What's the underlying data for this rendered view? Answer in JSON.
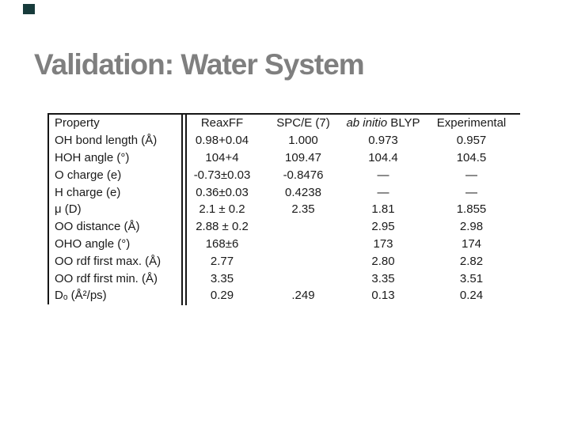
{
  "slide": {
    "title": "Validation: Water System",
    "title_color": "#7f7f7f",
    "accent_color": "#173b3b",
    "background_color": "#ffffff"
  },
  "table": {
    "header": {
      "property": "Property",
      "reaxff": "ReaxFF",
      "spce": "SPC/E (7)",
      "abinitio_italic": "ab initio",
      "abinitio_roman": " BLYP",
      "experimental": "Experimental"
    },
    "rows": [
      {
        "label": "OH bond length (Å)",
        "reaxff": "0.98+0.04",
        "spce": "1.000",
        "blyp": "0.973",
        "exp": "0.957"
      },
      {
        "label": "HOH angle (°)",
        "reaxff": "104+4",
        "spce": "109.47",
        "blyp": "104.4",
        "exp": "104.5"
      },
      {
        "label": "O charge (e)",
        "reaxff": "-0.73±0.03",
        "spce": "-0.8476",
        "blyp": "—",
        "exp": "—"
      },
      {
        "label": "H charge (e)",
        "reaxff": "0.36±0.03",
        "spce": "0.4238",
        "blyp": "—",
        "exp": "—"
      },
      {
        "label": "μ (D)",
        "reaxff": "2.1 ± 0.2",
        "spce": "2.35",
        "blyp": "1.81",
        "exp": "1.855"
      },
      {
        "label": "OO distance (Å)",
        "reaxff": "2.88 ± 0.2",
        "spce": "",
        "blyp": "2.95",
        "exp": "2.98"
      },
      {
        "label": "OHO angle (°)",
        "reaxff": "168±6",
        "spce": "",
        "blyp": "173",
        "exp": "174"
      },
      {
        "label": "OO rdf first max. (Å)",
        "reaxff": "2.77",
        "spce": "",
        "blyp": "2.80",
        "exp": "2.82"
      },
      {
        "label": "OO rdf first min. (Å)",
        "reaxff": "3.35",
        "spce": "",
        "blyp": "3.35",
        "exp": "3.51"
      },
      {
        "label": "Dₒ (Å²/ps)",
        "reaxff": "0.29",
        "spce": ".249",
        "blyp": "0.13",
        "exp": "0.24"
      }
    ]
  }
}
